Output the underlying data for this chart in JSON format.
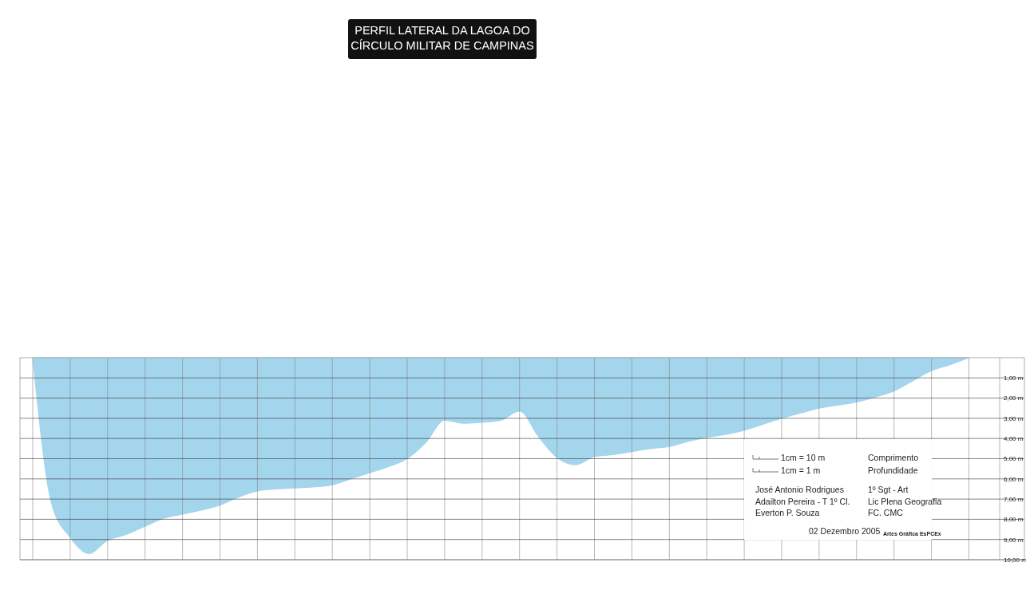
{
  "chart_data": {
    "type": "area",
    "title": "PERFIL LATERAL DA LAGOA DO CÍRCULO MILITAR DE CAMPINAS",
    "categories": [
      null,
      null,
      null,
      null,
      null,
      null,
      null,
      null,
      null,
      null,
      null,
      null,
      null,
      null,
      null,
      null,
      null,
      null,
      null,
      null,
      null,
      null,
      null,
      null,
      null,
      null,
      null,
      null,
      null,
      null,
      null,
      null,
      null,
      null,
      null,
      null,
      null,
      null,
      null,
      null,
      null,
      null,
      null,
      null,
      null,
      null,
      null,
      null,
      null,
      null,
      null
    ],
    "series": [
      {
        "color": "#a3d5ec",
        "values": [
          0,
          7.2,
          8.9,
          9.7,
          9.05,
          8.75,
          8.35,
          7.95,
          7.75,
          7.55,
          7.3,
          6.9,
          6.6,
          6.5,
          6.45,
          6.4,
          6.3,
          6.0,
          5.7,
          5.4,
          5.0,
          4.2,
          3.1,
          3.25,
          3.2,
          3.1,
          2.65,
          3.9,
          4.95,
          5.3,
          4.9,
          4.8,
          4.65,
          4.5,
          4.4,
          4.15,
          3.95,
          3.8,
          3.6,
          3.3,
          3.0,
          2.75,
          2.5,
          2.35,
          2.2,
          1.95,
          1.65,
          1.15,
          0.65,
          0.35,
          0
        ]
      }
    ],
    "ylim": [
      10,
      0
    ],
    "yticks": [
      {
        "value": 1,
        "label": "1,00 m"
      },
      {
        "value": 2,
        "label": "2,00 m"
      },
      {
        "value": 3,
        "label": "3,00 m"
      },
      {
        "value": 4,
        "label": "4,00 m"
      },
      {
        "value": 5,
        "label": "5,00 m"
      },
      {
        "value": 6,
        "label": "6,00 m"
      },
      {
        "value": 7,
        "label": "7,00 m"
      },
      {
        "value": 8,
        "label": "8,00 m"
      },
      {
        "value": 9,
        "label": "9,00 m"
      },
      {
        "value": 10,
        "label": "10,00 m"
      }
    ],
    "grid": true,
    "annotations": [
      "1cm = 10 m",
      "Comprimento",
      "1cm = 1 m",
      "Profundidade",
      "José Antonio Rodrigues",
      "1º Sgt - Art",
      "Adailton Pereira - T 1º Cl.",
      "Lic Plena Geografia",
      "Everton P.  Souza",
      "FC. CMC",
      "02 Dezembro 2005",
      "Artes Gráfica EsPCEx"
    ]
  }
}
